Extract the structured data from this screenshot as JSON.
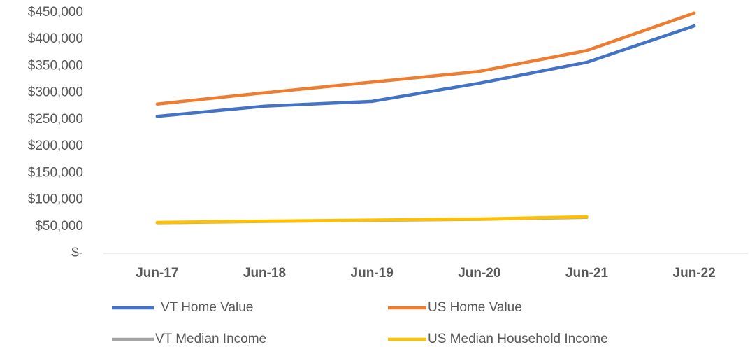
{
  "chart_data": {
    "type": "line",
    "categories": [
      "Jun-17",
      "Jun-18",
      "Jun-19",
      "Jun-20",
      "Jun-21",
      "Jun-22"
    ],
    "series": [
      {
        "name": "VT Home Value",
        "color": "#4472c4",
        "values": [
          256000,
          275000,
          284000,
          318000,
          357000,
          425000
        ]
      },
      {
        "name": "US Home Value",
        "color": "#ed7d31",
        "values": [
          279000,
          300000,
          320000,
          340000,
          379000,
          449000
        ]
      },
      {
        "name": "VT Median Income",
        "color": "#a5a5a5",
        "values": [
          57000,
          59500,
          61500,
          63500,
          67000,
          null
        ]
      },
      {
        "name": "US Median Household Income",
        "color": "#ffc000",
        "values": [
          57500,
          60000,
          62000,
          64000,
          68000,
          null
        ]
      }
    ],
    "ylim": [
      0,
      450000
    ],
    "yticks": [
      {
        "value": 0,
        "label": "$-"
      },
      {
        "value": 50000,
        "label": "$50,000"
      },
      {
        "value": 100000,
        "label": "$100,000"
      },
      {
        "value": 150000,
        "label": "$150,000"
      },
      {
        "value": 200000,
        "label": "$200,000"
      },
      {
        "value": 250000,
        "label": "$250,000"
      },
      {
        "value": 300000,
        "label": "$300,000"
      },
      {
        "value": 350000,
        "label": "$350,000"
      },
      {
        "value": 400000,
        "label": "$400,000"
      },
      {
        "value": 450000,
        "label": "$450,000"
      }
    ],
    "grid": false
  }
}
